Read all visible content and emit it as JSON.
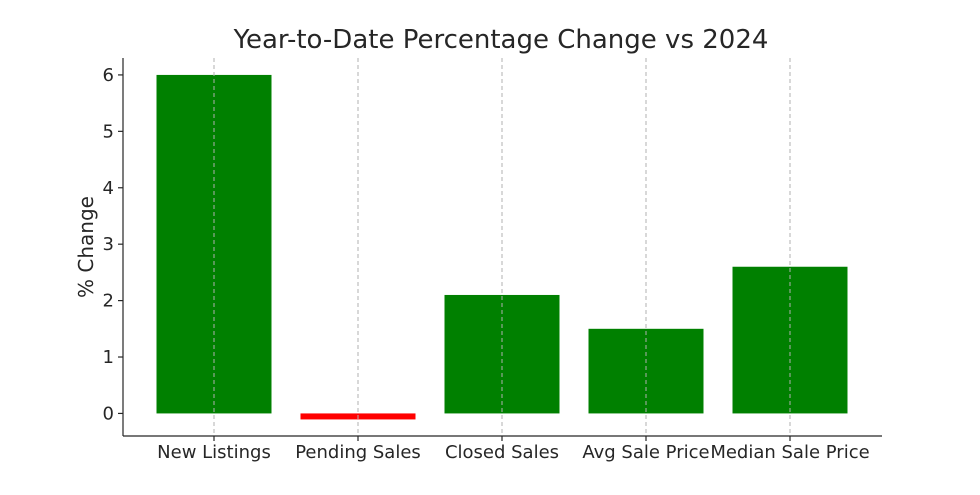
{
  "chart_data": {
    "type": "bar",
    "title": "Year-to-Date Percentage Change vs 2024",
    "xlabel": "",
    "ylabel": "% Change",
    "categories": [
      "New Listings",
      "Pending Sales",
      "Closed Sales",
      "Avg Sale Price",
      "Median Sale Price"
    ],
    "values": [
      6.0,
      -0.1,
      2.1,
      1.5,
      2.6
    ],
    "ylim": [
      -0.4,
      6.3
    ],
    "yticks": [
      0,
      1,
      2,
      3,
      4,
      5,
      6
    ],
    "grid": "vertical dashed",
    "colors": {
      "positive": "#008000",
      "negative": "#ff0000"
    }
  }
}
